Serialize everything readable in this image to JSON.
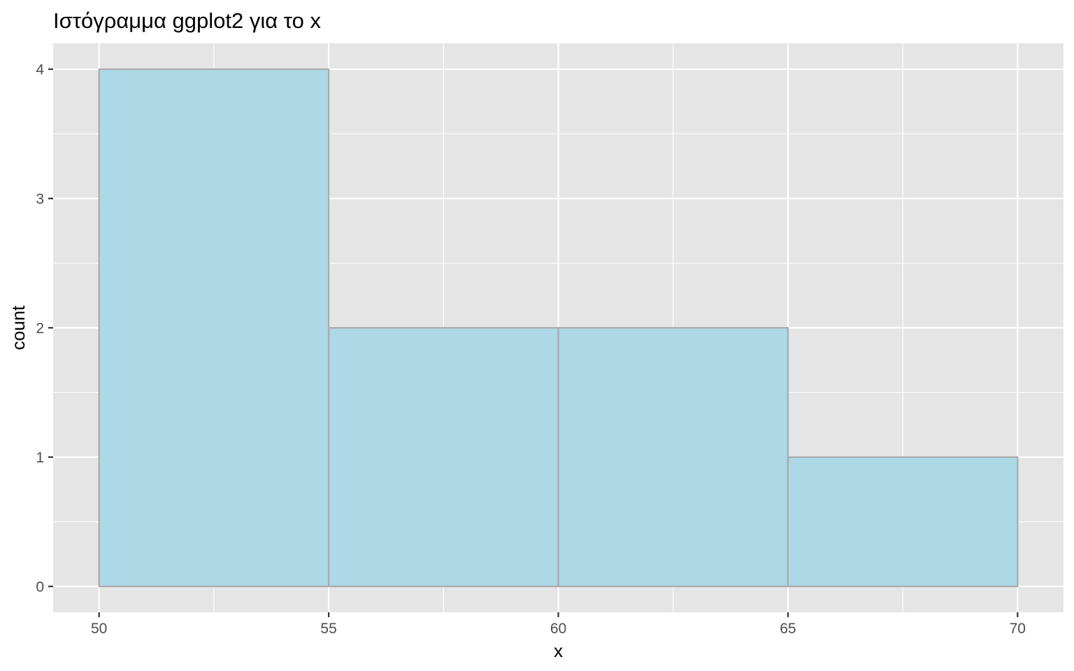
{
  "chart_data": {
    "type": "bar",
    "subtype": "histogram",
    "title": "Ιστόγραμμα ggplot2 για το x",
    "xlabel": "x",
    "ylabel": "count",
    "bins": [
      {
        "start": 50,
        "end": 55,
        "count": 4
      },
      {
        "start": 55,
        "end": 60,
        "count": 2
      },
      {
        "start": 60,
        "end": 65,
        "count": 2
      },
      {
        "start": 65,
        "end": 70,
        "count": 1
      }
    ],
    "x_ticks": [
      50,
      55,
      60,
      65,
      70
    ],
    "y_ticks": [
      0,
      1,
      2,
      3,
      4
    ],
    "xlim": [
      49,
      71
    ],
    "ylim": [
      -0.2,
      4.2
    ],
    "grid": true,
    "legend": "none",
    "colors": {
      "panel_background": "#e5e5e5",
      "bar_fill": "#add8e6",
      "bar_outline": "#aaaaaa",
      "gridlines": "#ffffff"
    }
  }
}
